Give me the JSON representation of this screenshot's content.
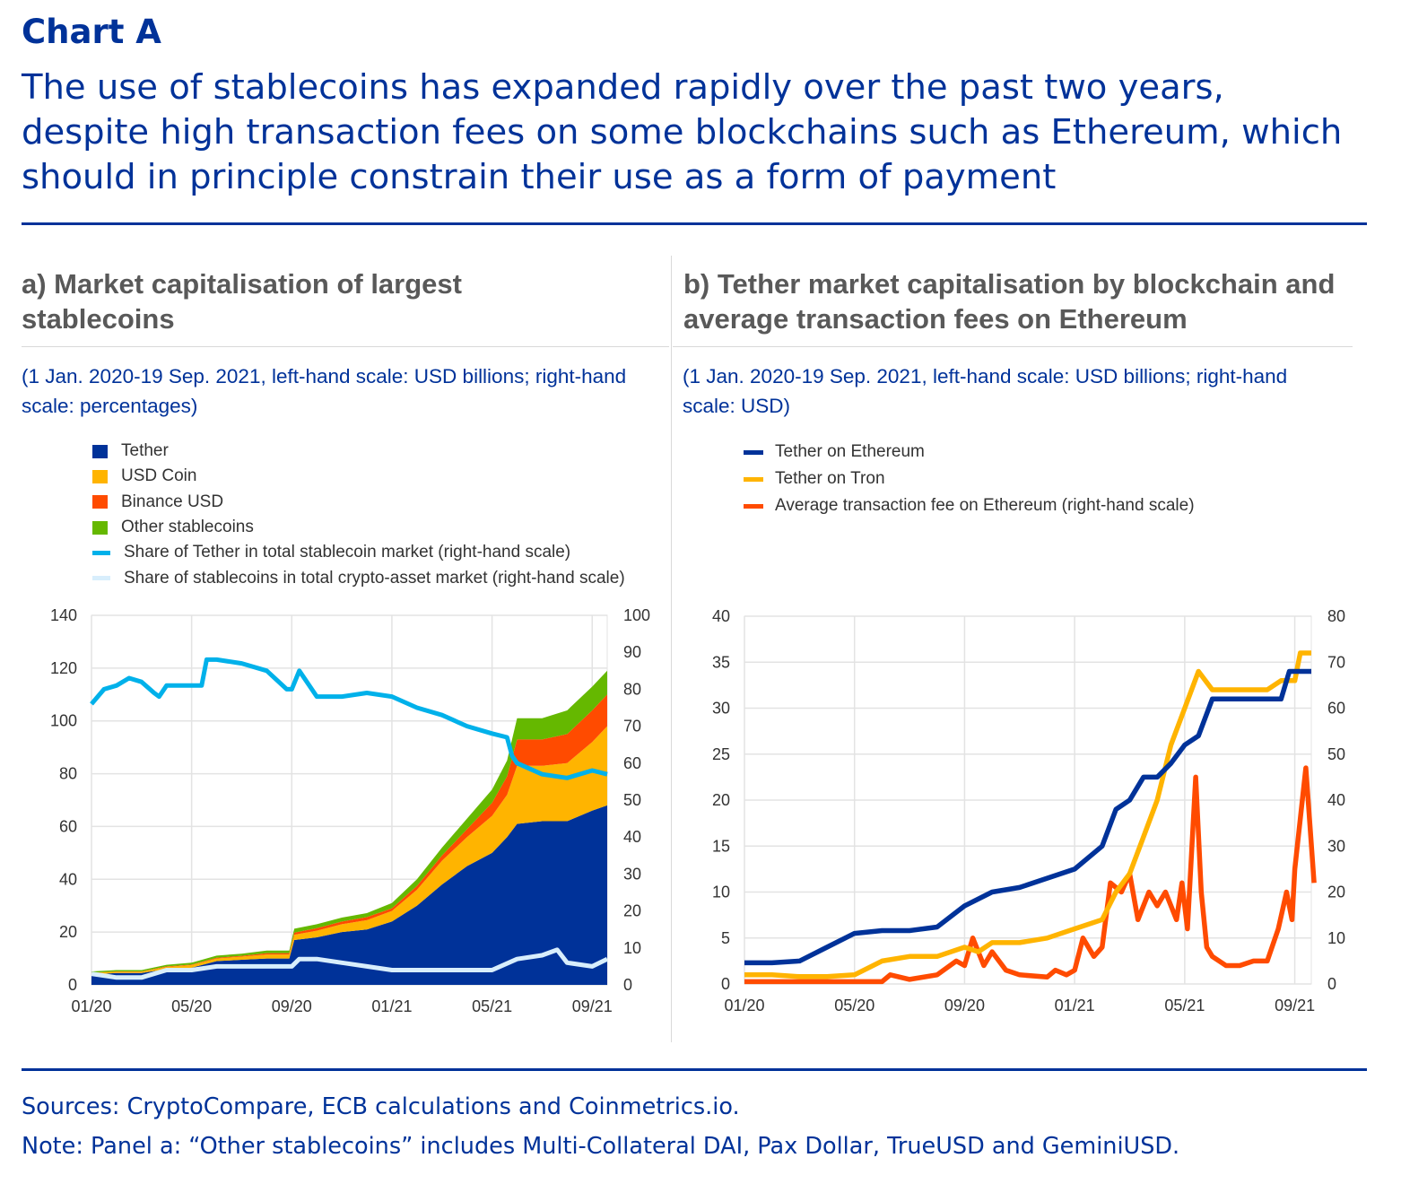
{
  "header": {
    "label": "Chart A",
    "headline": "The use of stablecoins has expanded rapidly over the past two years, despite high transaction fees on some blockchains such as Ethereum, which should in principle constrain their use as a form of payment"
  },
  "panel_a": {
    "title": "a) Market capitalisation of largest stablecoins",
    "subtitle": "(1 Jan. 2020-19 Sep. 2021, left-hand scale: USD billions; right-hand scale: percentages)"
  },
  "panel_b": {
    "title": "b) Tether market capitalisation by blockchain and average transaction fees on Ethereum",
    "subtitle": "(1 Jan. 2020-19 Sep. 2021, left-hand scale: USD billions; right-hand scale: USD)"
  },
  "footer": {
    "sources": "Sources: CryptoCompare, ECB calculations and Coinmetrics.io.",
    "note": "Note: Panel a: “Other stablecoins” includes Multi-Collateral DAI, Pax Dollar, TrueUSD and GeminiUSD."
  },
  "chart_data": [
    {
      "type": "area",
      "title": "a) Market capitalisation of largest stablecoins",
      "x_unit": "months since Jan 2020",
      "xtick_labels": [
        "01/20",
        "05/20",
        "09/20",
        "01/21",
        "05/21",
        "09/21"
      ],
      "xtick_months": [
        0,
        4,
        8,
        12,
        16,
        20
      ],
      "xlim": [
        0,
        20.6
      ],
      "ylim": [
        0,
        140
      ],
      "yticks": [
        0,
        20,
        40,
        60,
        80,
        100,
        120,
        140
      ],
      "y2lim": [
        0,
        100
      ],
      "y2ticks": [
        0,
        10,
        20,
        30,
        40,
        50,
        60,
        70,
        80,
        90,
        100
      ],
      "grid": true,
      "legend_position": "top",
      "x": [
        0,
        1,
        2,
        3,
        4,
        5,
        6,
        7,
        7.9,
        8.1,
        9,
        10,
        11,
        12,
        13,
        14,
        15,
        16,
        16.6,
        17,
        18,
        19,
        20,
        20.6
      ],
      "stacked_series": [
        {
          "name": "Tether",
          "color": "#003299",
          "values": [
            4,
            4.5,
            4.5,
            6,
            6.5,
            9,
            9.5,
            10,
            10,
            17,
            18,
            20,
            21,
            24,
            30,
            38,
            45,
            50,
            56,
            61,
            62,
            62,
            66,
            68
          ]
        },
        {
          "name": "USD Coin",
          "color": "#ffb400",
          "values": [
            0.5,
            0.5,
            0.5,
            0.8,
            1,
            1,
            1.2,
            1.5,
            1.5,
            2,
            2.5,
            3,
            3.5,
            4,
            6,
            9,
            11,
            14,
            16,
            22,
            21,
            22,
            26,
            30
          ]
        },
        {
          "name": "Binance USD",
          "color": "#ff4b00",
          "values": [
            0.1,
            0.1,
            0.1,
            0.2,
            0.2,
            0.3,
            0.3,
            0.5,
            0.5,
            0.8,
            1,
            1,
            1.2,
            1,
            1.5,
            2,
            3,
            5,
            7,
            10,
            10,
            11,
            12,
            12
          ]
        },
        {
          "name": "Other stablecoins",
          "color": "#65b800",
          "values": [
            0.5,
            0.5,
            0.5,
            0.6,
            0.7,
            0.8,
            0.8,
            1,
            1,
            1.5,
            1.5,
            1.5,
            1.5,
            2,
            2.5,
            3,
            4,
            5,
            6,
            8,
            8,
            9,
            9,
            9
          ]
        }
      ],
      "line_series": [
        {
          "name": "Share of Tether in total stablecoin market (right-hand scale)",
          "color": "#00b1ea",
          "axis": "right",
          "x": [
            0,
            0.5,
            1,
            1.5,
            2,
            2.5,
            2.7,
            3,
            4,
            4.4,
            4.6,
            5,
            6,
            7,
            7.8,
            8,
            8.3,
            9,
            10,
            11,
            12,
            13,
            14,
            15,
            16,
            16.6,
            16.8,
            17,
            18,
            19,
            20,
            20.6
          ],
          "values": [
            76,
            80,
            81,
            83,
            82,
            79,
            78,
            81,
            81,
            81,
            88,
            88,
            87,
            85,
            80,
            80,
            85,
            78,
            78,
            79,
            78,
            75,
            73,
            70,
            68,
            67,
            62,
            60,
            57,
            56,
            58,
            57
          ]
        },
        {
          "name": "Share of stablecoins in total crypto-asset market (right-hand scale)",
          "color": "#d8eefc",
          "axis": "right",
          "x": [
            0,
            1,
            2,
            3,
            4,
            5,
            6,
            7,
            8,
            8.3,
            9,
            10,
            11,
            12,
            13,
            14,
            15,
            16,
            17,
            18,
            18.6,
            19,
            20,
            20.6
          ],
          "values": [
            3,
            2,
            2,
            4,
            4,
            5,
            5,
            5,
            5,
            7,
            7,
            6,
            5,
            4,
            4,
            4,
            4,
            4,
            7,
            8,
            9.5,
            6,
            5,
            7
          ]
        }
      ]
    },
    {
      "type": "line",
      "title": "b) Tether market capitalisation by blockchain and average transaction fees on Ethereum",
      "x_unit": "months since Jan 2020",
      "xtick_labels": [
        "01/20",
        "05/20",
        "09/20",
        "01/21",
        "05/21",
        "09/21"
      ],
      "xtick_months": [
        0,
        4,
        8,
        12,
        16,
        20
      ],
      "xlim": [
        0,
        20.6
      ],
      "ylim": [
        0,
        40
      ],
      "yticks": [
        0,
        5,
        10,
        15,
        20,
        25,
        30,
        35,
        40
      ],
      "y2lim": [
        0,
        80
      ],
      "y2ticks": [
        0,
        10,
        20,
        30,
        40,
        50,
        60,
        70,
        80
      ],
      "grid": true,
      "legend_position": "top",
      "series": [
        {
          "name": "Tether on Ethereum",
          "color": "#003299",
          "axis": "left",
          "x": [
            0,
            1,
            2,
            3,
            4,
            5,
            6,
            7,
            8,
            9,
            10,
            11,
            12,
            13,
            13.5,
            14,
            14.5,
            15,
            15.5,
            16,
            16.5,
            17,
            18,
            19,
            19.5,
            19.8,
            20.6
          ],
          "values": [
            2.3,
            2.3,
            2.5,
            4,
            5.5,
            5.8,
            5.8,
            6.2,
            8.5,
            10,
            10.5,
            11.5,
            12.5,
            15,
            19,
            20,
            22.5,
            22.5,
            24,
            26,
            27,
            31,
            31,
            31,
            31,
            34,
            34
          ]
        },
        {
          "name": "Tether on Tron",
          "color": "#ffb400",
          "axis": "left",
          "x": [
            0,
            1,
            2,
            3,
            4,
            5,
            6,
            7,
            8,
            8.5,
            9,
            10,
            11,
            12,
            13,
            13.5,
            14,
            14.5,
            15,
            15.5,
            16,
            16.5,
            17,
            18,
            19,
            19.5,
            20,
            20.2,
            20.6
          ],
          "values": [
            1,
            1,
            0.8,
            0.8,
            1,
            2.5,
            3,
            3,
            4,
            3.5,
            4.5,
            4.5,
            5,
            6,
            7,
            10,
            12,
            16,
            20,
            26,
            30,
            34,
            32,
            32,
            32,
            33,
            33,
            36,
            36
          ]
        },
        {
          "name": "Average transaction fee on Ethereum (right-hand scale)",
          "color": "#ff4b00",
          "axis": "right",
          "x": [
            0,
            2,
            4,
            5,
            5.3,
            6,
            7,
            7.7,
            8,
            8.3,
            8.7,
            9,
            9.5,
            10,
            11,
            11.3,
            11.7,
            12,
            12.3,
            12.7,
            13,
            13.3,
            13.7,
            14,
            14.3,
            14.7,
            15,
            15.3,
            15.7,
            15.9,
            16.1,
            16.4,
            16.6,
            16.8,
            17,
            17.5,
            18,
            18.5,
            19,
            19.4,
            19.7,
            19.9,
            20,
            20.4,
            20.7
          ],
          "values": [
            0.5,
            0.5,
            0.5,
            0.5,
            2,
            1,
            2,
            5,
            4,
            10,
            4,
            7,
            3,
            2,
            1.5,
            3,
            2,
            3,
            10,
            6,
            8,
            22,
            20,
            24,
            14,
            20,
            17,
            20,
            14,
            22,
            12,
            45,
            20,
            8,
            6,
            4,
            4,
            5,
            5,
            12,
            20,
            14,
            25,
            47,
            22
          ]
        }
      ]
    }
  ]
}
